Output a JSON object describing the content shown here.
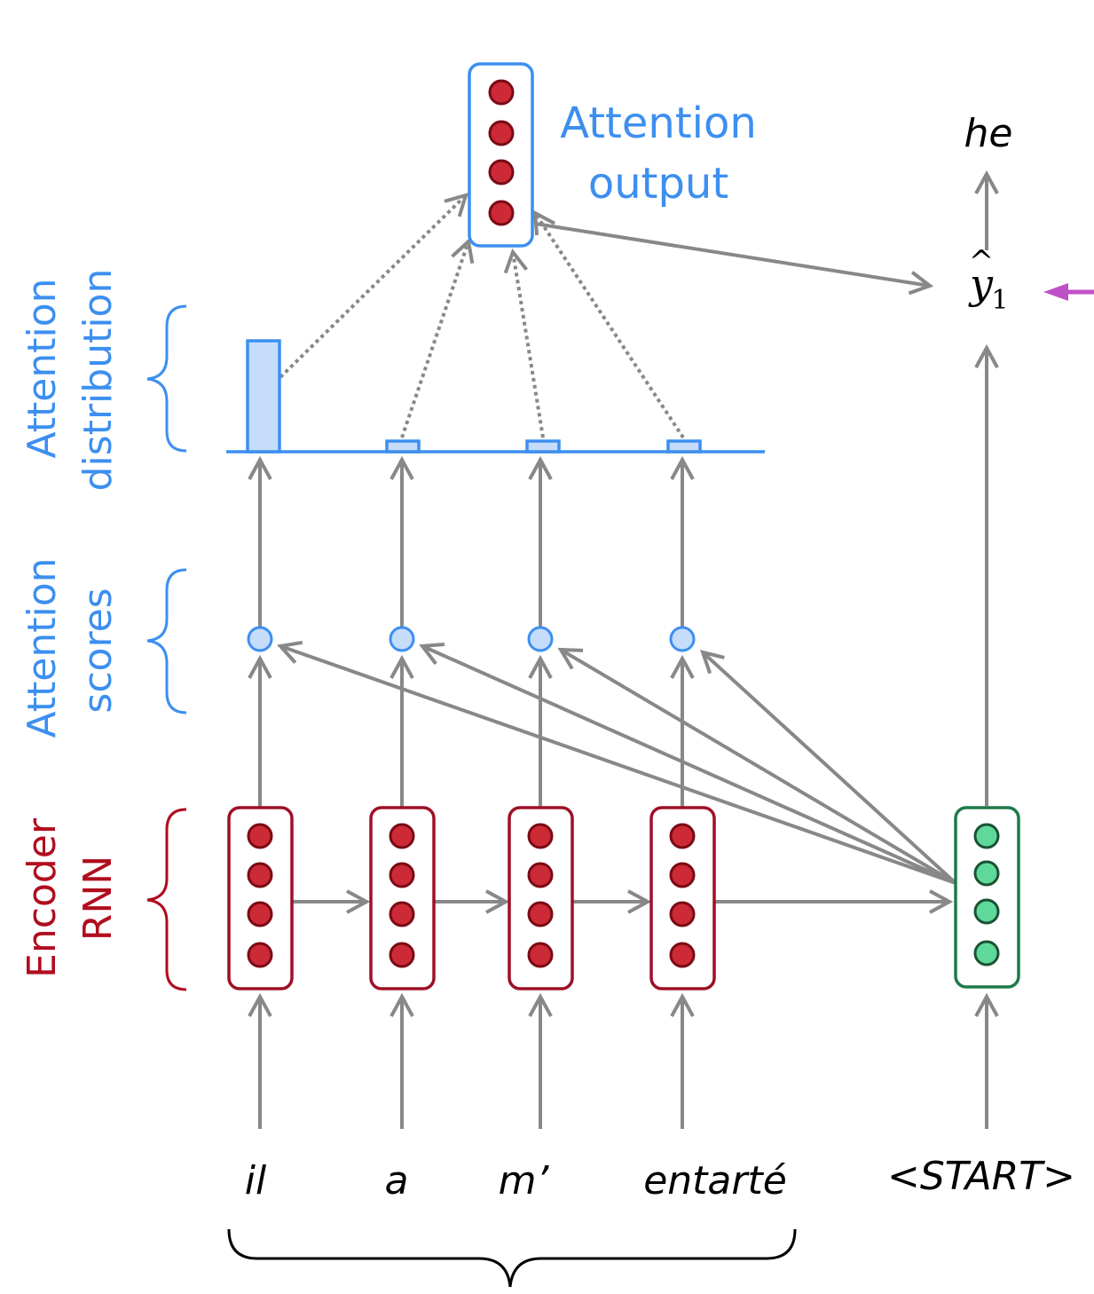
{
  "labels": {
    "attention_output": [
      "Attention",
      "output"
    ],
    "attention_distribution": [
      "Attention",
      "distribution"
    ],
    "attention_scores": [
      "Attention",
      "scores"
    ],
    "encoder_rnn": [
      "Encoder",
      "RNN"
    ]
  },
  "source_words": [
    "il",
    "a",
    "m’",
    "entarté"
  ],
  "decoder_input": "<START>",
  "decoder_output": "he",
  "prediction": {
    "symbol": "y",
    "hat": "^",
    "subscript": "1"
  },
  "attention_distribution": [
    0.8,
    0.067,
    0.067,
    0.066
  ],
  "colors": {
    "attention": "#3d8ff0",
    "attention_fill": "#c6dcfb",
    "encoder": "#9e1027",
    "encoder_dot": "#cc2a36",
    "decoder": "#1f7a4a",
    "decoder_dot": "#5fd99a",
    "arrow": "#888888",
    "pointer": "#c050c8"
  }
}
